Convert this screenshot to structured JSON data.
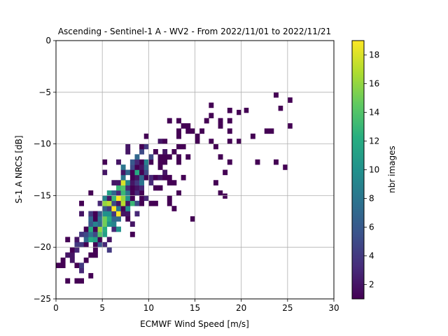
{
  "chart_data": {
    "type": "heatmap",
    "title": "Ascending - Sentinel-1 A - WV2 - From 2022/11/01 to 2022/11/21",
    "xlabel": "ECMWF Wind Speed [m/s]",
    "ylabel": "S-1 A NRCS [dB]",
    "xlim": [
      0,
      30
    ],
    "ylim": [
      -25,
      0
    ],
    "x_ticks": [
      "0",
      "5",
      "10",
      "15",
      "20",
      "25",
      "30"
    ],
    "y_ticks": [
      "0",
      "−5",
      "−10",
      "−15",
      "−20",
      "−25"
    ],
    "grid": true,
    "colormap": "viridis",
    "colorbar": {
      "label": "nbr images",
      "min": 1,
      "max": 19,
      "ticks": [
        "2",
        "4",
        "6",
        "8",
        "10",
        "12",
        "14",
        "16",
        "18"
      ]
    },
    "bin_size": {
      "x": 0.5,
      "y": 0.5
    },
    "density_ridge": [
      {
        "x": 1.0,
        "y": -21.5
      },
      {
        "x": 2.5,
        "y": -20.0
      },
      {
        "x": 4.0,
        "y": -18.5
      },
      {
        "x": 5.5,
        "y": -17.0
      },
      {
        "x": 7.0,
        "y": -15.5
      },
      {
        "x": 8.5,
        "y": -14.0
      },
      {
        "x": 10.0,
        "y": -12.5
      },
      {
        "x": 12.0,
        "y": -11.5
      },
      {
        "x": 14.0,
        "y": -10.5
      },
      {
        "x": 17.0,
        "y": -9.0
      },
      {
        "x": 20.0,
        "y": -7.5
      }
    ],
    "outliers": [
      {
        "x": 24.0,
        "y": -6.8
      },
      {
        "x": 20.3,
        "y": -7.0
      },
      {
        "x": 19.5,
        "y": -7.2
      },
      {
        "x": 17.5,
        "y": -15.0
      },
      {
        "x": 18.0,
        "y": -15.3
      }
    ]
  }
}
